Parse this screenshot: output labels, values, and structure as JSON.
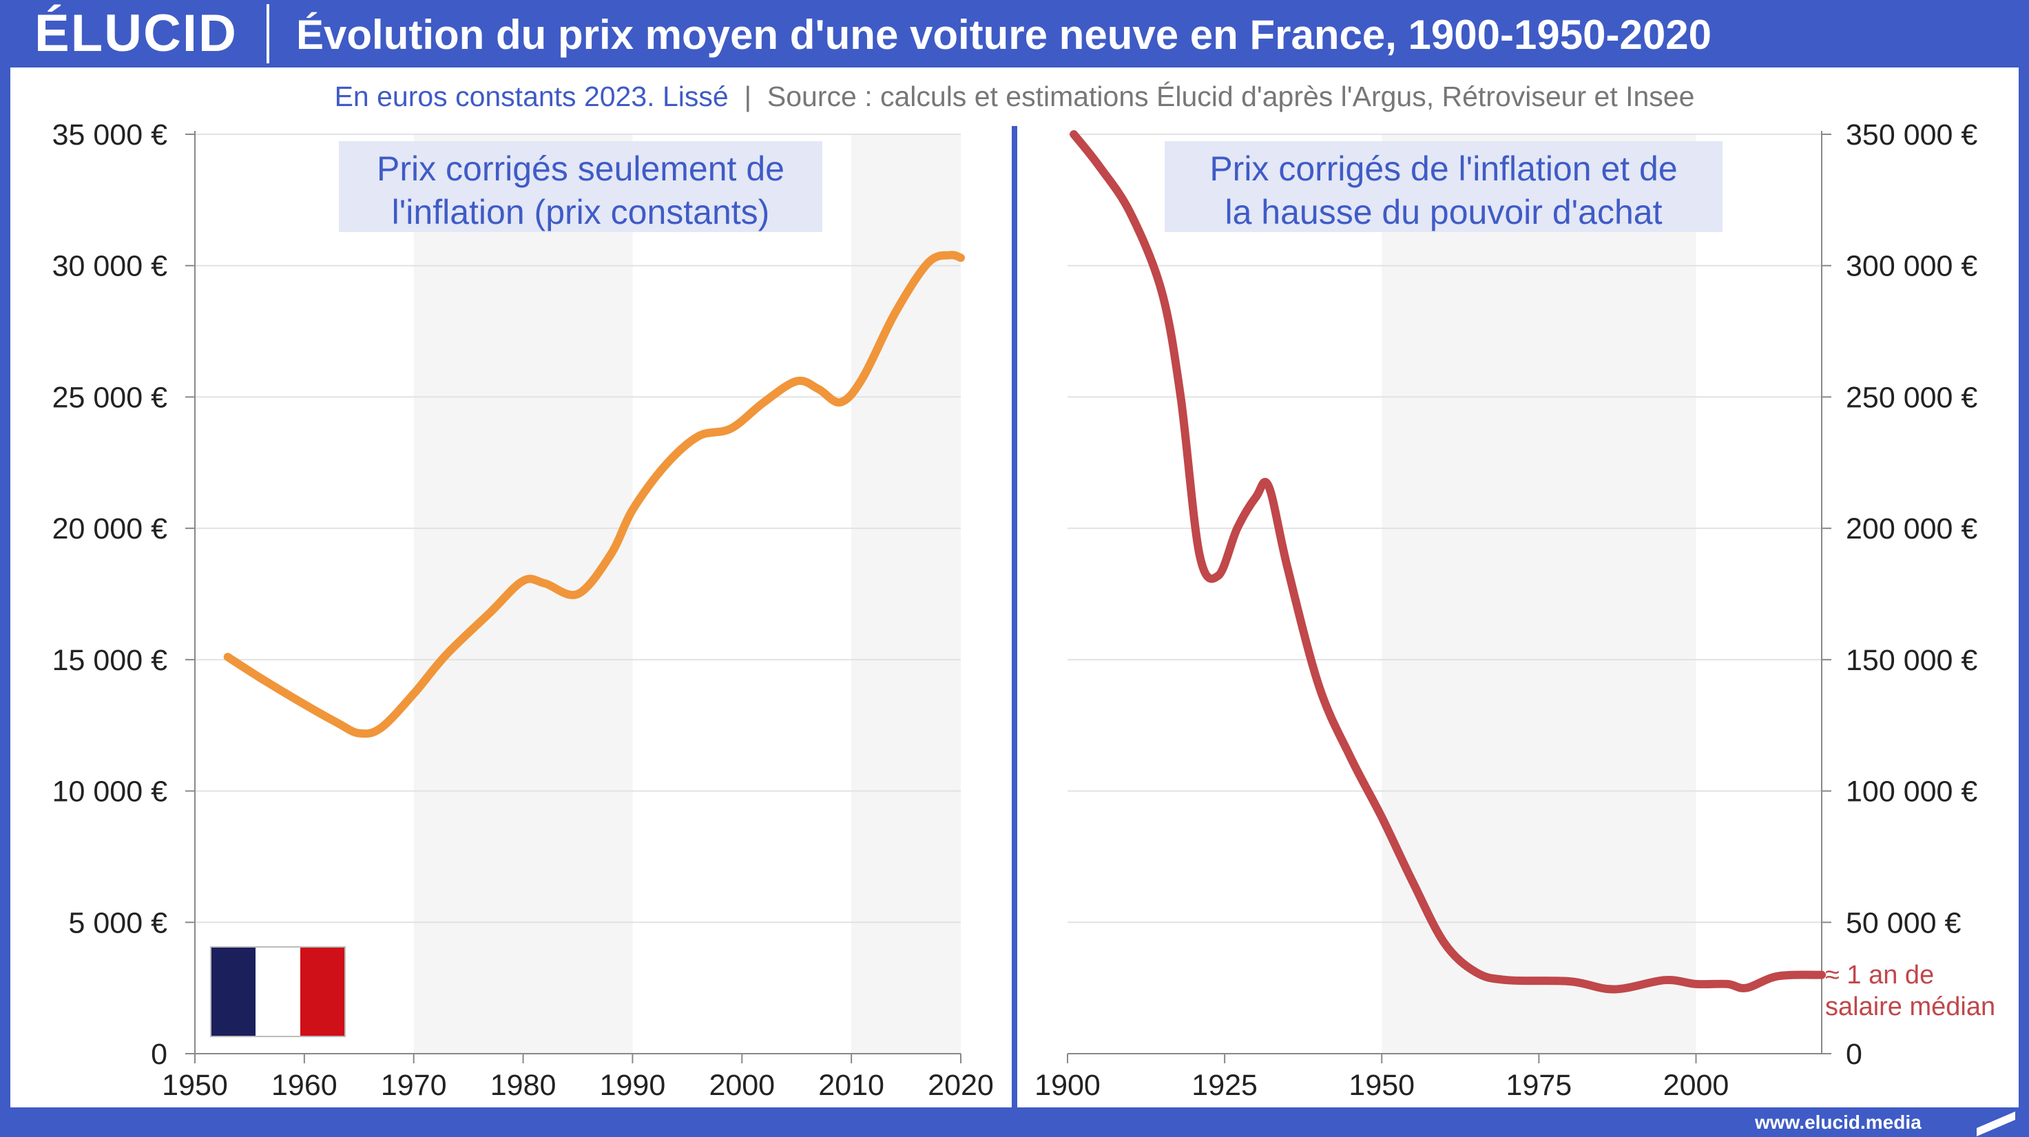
{
  "brand": {
    "logo_text": "ÉLUCID",
    "url": "www.elucid.media"
  },
  "header": {
    "title": "Évolution du prix moyen d'une voiture neuve en France, 1900-1950-2020",
    "subtitle_main": "En euros constants 2023. Lissé",
    "subtitle_sep": "|",
    "subtitle_source": "Source : calculs et estimations Élucid d'après l'Argus, Rétroviseur et Insee"
  },
  "colors": {
    "brand_blue": "#3f5bc6",
    "series_left": "#f0953a",
    "series_right": "#c0474a",
    "label_bg": "#e3e7f6"
  },
  "chart_data": [
    {
      "type": "line",
      "panel_label": [
        "Prix corrigés seulement de",
        "l'inflation (prix constants)"
      ],
      "xlim": [
        1950,
        2020
      ],
      "ylim": [
        0,
        35000
      ],
      "x_ticks": [
        "1950",
        "1960",
        "1970",
        "1980",
        "1990",
        "2000",
        "2010",
        "2020"
      ],
      "y_ticks": [
        "0",
        "5 000 €",
        "10 000 €",
        "15 000 €",
        "20 000 €",
        "25 000 €",
        "30 000 €",
        "35 000 €"
      ],
      "y_axis_side": "left",
      "grid": true,
      "series": [
        {
          "x": [
            1953,
            1956,
            1960,
            1963,
            1965,
            1967,
            1970,
            1973,
            1977,
            1980,
            1982,
            1985,
            1988,
            1990,
            1993,
            1996,
            1999,
            2002,
            2005,
            2007,
            2009,
            2011,
            2014,
            2017,
            2019,
            2020
          ],
          "values": [
            15100,
            14300,
            13300,
            12600,
            12200,
            12400,
            13700,
            15200,
            16800,
            18000,
            17900,
            17500,
            19000,
            20700,
            22400,
            23500,
            23800,
            24800,
            25600,
            25300,
            24800,
            25700,
            28200,
            30100,
            30400,
            30300
          ]
        }
      ],
      "annotation": "flag-france"
    },
    {
      "type": "line",
      "panel_label": [
        "Prix corrigés de l'inflation et de",
        "la hausse du pouvoir d'achat"
      ],
      "xlim": [
        1900,
        2020
      ],
      "ylim": [
        0,
        350000
      ],
      "x_ticks": [
        "1900",
        "1925",
        "1950",
        "1975",
        "2000"
      ],
      "y_ticks": [
        "0",
        "50 000 €",
        "100 000 €",
        "150 000 €",
        "200 000 €",
        "250 000 €",
        "300 000 €",
        "350 000 €"
      ],
      "y_axis_side": "right",
      "grid": true,
      "series": [
        {
          "x": [
            1901,
            1905,
            1910,
            1915,
            1918,
            1921,
            1924,
            1927,
            1930,
            1932,
            1935,
            1940,
            1945,
            1950,
            1955,
            1960,
            1965,
            1970,
            1980,
            1987,
            1995,
            2000,
            2005,
            2008,
            2013,
            2020
          ],
          "values": [
            350000,
            338000,
            320000,
            290000,
            250000,
            190000,
            182000,
            200000,
            212000,
            216000,
            185000,
            140000,
            113000,
            90000,
            65000,
            42000,
            31000,
            28000,
            27500,
            24500,
            28000,
            26500,
            26500,
            25000,
            29500,
            30000
          ]
        }
      ],
      "end_annotation": [
        "≈ 1 an de",
        "salaire médian"
      ]
    }
  ]
}
